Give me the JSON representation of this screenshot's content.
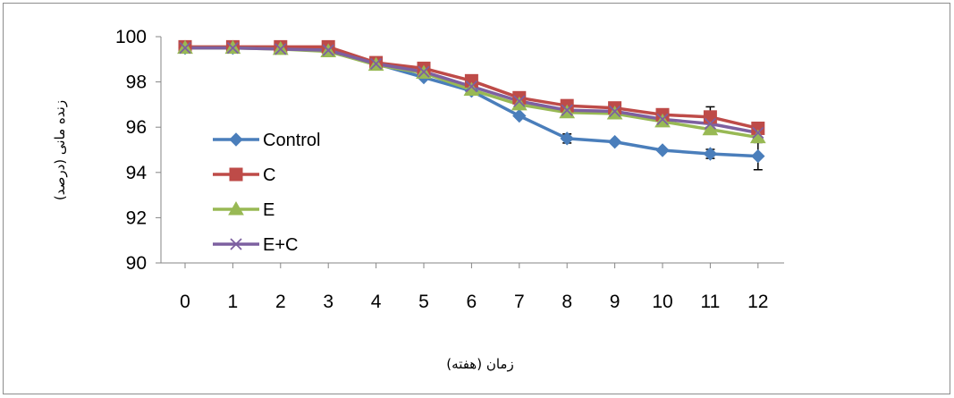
{
  "chart_data": {
    "type": "line",
    "title": "",
    "xlabel": "زمان (هفته)",
    "ylabel": "زنده مانی (درصد)",
    "x": [
      0,
      1,
      2,
      3,
      4,
      5,
      6,
      7,
      8,
      9,
      10,
      11,
      12
    ],
    "xlim": [
      0,
      12
    ],
    "ylim": [
      90,
      100
    ],
    "yticks": [
      90,
      92,
      94,
      96,
      98,
      100
    ],
    "grid": false,
    "legend_position": "left",
    "series": [
      {
        "name": "Control",
        "color": "#4a7ebb",
        "marker": "diamond",
        "values": [
          99.5,
          99.5,
          99.5,
          99.4,
          98.8,
          98.2,
          97.6,
          96.5,
          95.5,
          95.35,
          94.98,
          94.82,
          94.72
        ],
        "error": [
          0,
          0,
          0,
          0,
          0,
          0,
          0,
          0,
          0.2,
          0,
          0,
          0.2,
          0.6
        ]
      },
      {
        "name": "C",
        "color": "#be4b48",
        "marker": "square",
        "values": [
          99.55,
          99.55,
          99.55,
          99.55,
          98.85,
          98.6,
          98.05,
          97.3,
          96.95,
          96.85,
          96.55,
          96.45,
          95.95
        ],
        "error": [
          0,
          0,
          0,
          0,
          0,
          0,
          0,
          0,
          0,
          0,
          0,
          0.45,
          0
        ]
      },
      {
        "name": "E",
        "color": "#98b954",
        "marker": "triangle",
        "values": [
          99.5,
          99.5,
          99.45,
          99.35,
          98.75,
          98.4,
          97.65,
          97.0,
          96.65,
          96.6,
          96.25,
          95.9,
          95.55
        ],
        "error": [
          0,
          0,
          0,
          0,
          0,
          0,
          0,
          0,
          0,
          0,
          0,
          0,
          0
        ]
      },
      {
        "name": "E+C",
        "color": "#7d60a0",
        "marker": "x",
        "values": [
          99.5,
          99.5,
          99.45,
          99.4,
          98.8,
          98.45,
          97.8,
          97.15,
          96.75,
          96.7,
          96.35,
          96.15,
          95.75
        ],
        "error": [
          0,
          0,
          0,
          0,
          0,
          0,
          0,
          0,
          0,
          0,
          0,
          0,
          0
        ]
      }
    ]
  }
}
